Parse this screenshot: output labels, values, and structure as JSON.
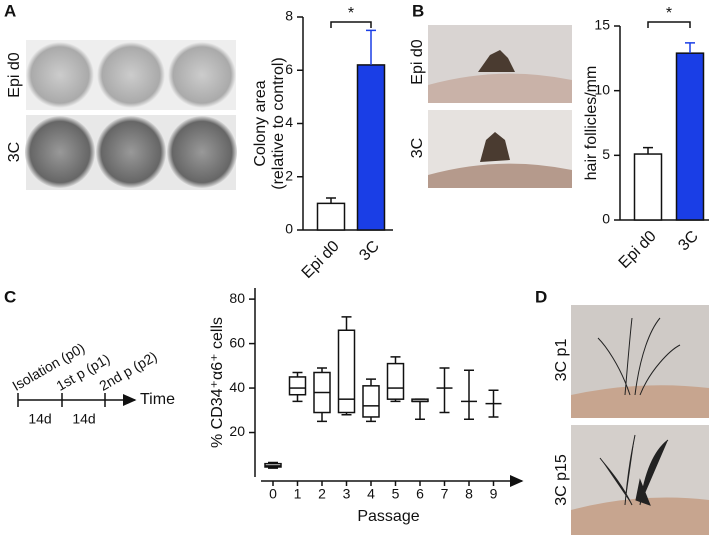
{
  "panel_labels": [
    "A",
    "B",
    "C",
    "D"
  ],
  "panel_a_images": {
    "row_labels": [
      "Epi d0",
      "3C"
    ]
  },
  "panel_b_images": {
    "row_labels": [
      "Epi d0",
      "3C"
    ]
  },
  "panel_d_images": {
    "row_labels": [
      "3C p1",
      "3C p15"
    ]
  },
  "timeline": {
    "steps": [
      "Isolation (p0)",
      "1st p (p1)",
      "2nd p (p2)"
    ],
    "intervals": [
      "14d",
      "14d"
    ],
    "axis_label": "Time"
  },
  "chart_data": [
    {
      "type": "bar",
      "y_label": [
        "Colony area",
        "(relative to control)"
      ],
      "categories": [
        "Epi d0",
        "3C"
      ],
      "values": [
        1,
        6.2
      ],
      "errors": [
        0.2,
        1.3
      ],
      "colors": [
        "#ffffff",
        "#1a3ee6"
      ],
      "ylim": [
        0,
        8
      ],
      "yticks": [
        0,
        2,
        4,
        6,
        8
      ],
      "annotation": "*"
    },
    {
      "type": "bar",
      "y_label": [
        "hair follicles/mm"
      ],
      "categories": [
        "Epi d0",
        "3C"
      ],
      "values": [
        5.1,
        12.9
      ],
      "errors": [
        0.5,
        0.8
      ],
      "colors": [
        "#ffffff",
        "#1a3ee6"
      ],
      "ylim": [
        0,
        15
      ],
      "yticks": [
        0,
        5,
        10,
        15
      ],
      "annotation": "*"
    },
    {
      "type": "box",
      "y_label": "% CD34⁺α6⁺ cells",
      "x_label": "Passage",
      "categories": [
        "0",
        "1",
        "2",
        "3",
        "4",
        "5",
        "6",
        "7",
        "8",
        "9"
      ],
      "min": [
        4,
        34,
        25,
        28,
        25,
        34,
        26,
        29,
        26,
        27
      ],
      "q1": [
        4.5,
        37,
        29,
        29,
        27,
        35,
        34,
        40,
        34,
        33
      ],
      "median": [
        5,
        40,
        38,
        35,
        32,
        40,
        34,
        40,
        34,
        33
      ],
      "q3": [
        6,
        45,
        47,
        66,
        41,
        51,
        35,
        40,
        34,
        33
      ],
      "max": [
        6.5,
        47,
        49,
        72,
        44,
        54,
        35,
        49,
        48,
        39
      ],
      "ylim": [
        0,
        85
      ],
      "yticks": [
        20,
        40,
        60,
        80
      ]
    }
  ]
}
